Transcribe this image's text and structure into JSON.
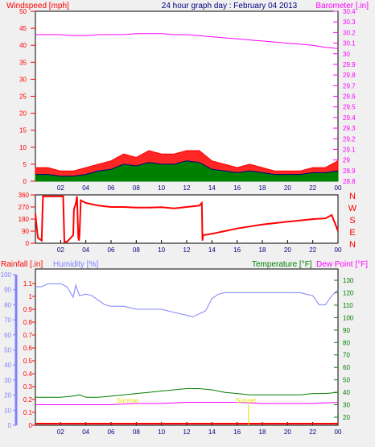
{
  "title": "24 hour graph day : February 04 2013",
  "colors": {
    "windspeed": "#ff0000",
    "gust_fill": "#ff0000",
    "wind_avg": "#008000",
    "wind_mean_line": "#000080",
    "barometer": "#ff00ff",
    "direction": "#ff0000",
    "rainfall": "#ff0000",
    "humidity": "#8080ff",
    "temperature": "#008000",
    "dewpoint": "#ff00ff",
    "title": "#000080",
    "background": "#f0f0f0",
    "plot_bg": "#ffffff"
  },
  "x_tick_labels": [
    "02",
    "04",
    "06",
    "08",
    "10",
    "12",
    "14",
    "16",
    "18",
    "20",
    "22",
    "00"
  ],
  "panel1": {
    "left_label": "Windspeed [mph]",
    "right_label": "Barometer [.in]",
    "left_ticks": [
      "0",
      "5",
      "10",
      "15",
      "20",
      "25",
      "30",
      "35",
      "40",
      "45",
      "50"
    ],
    "right_ticks": [
      "28.8",
      "28.9",
      "29",
      "29.1",
      "29.2",
      "29.3",
      "29.4",
      "29.5",
      "29.6",
      "29.7",
      "29.8",
      "29.9",
      "30",
      "30.1",
      "30.2",
      "30.3",
      "30.4"
    ]
  },
  "panel2": {
    "left_ticks": [
      "0",
      "90",
      "180",
      "270",
      "360"
    ],
    "compass": [
      "N",
      "W",
      "S",
      "E",
      "N"
    ]
  },
  "panel3": {
    "rain_label": "Rainfall [.in]",
    "humidity_label": "Humidity [%]",
    "temp_label": "Temperature [°F]",
    "dew_label": "Dew Point [°F]",
    "rain_ticks": [
      "0",
      "0.1",
      "0.2",
      "0.3",
      "0.4",
      "0.5",
      "0.6",
      "0.7",
      "0.8",
      "0.9",
      "1",
      "1.1"
    ],
    "humidity_ticks": [
      "0",
      "10",
      "20",
      "30",
      "40",
      "50",
      "60",
      "70",
      "80",
      "90",
      "100"
    ],
    "temp_ticks": [
      "20",
      "30",
      "40",
      "50",
      "60",
      "70",
      "80",
      "90",
      "100",
      "110",
      "120",
      "130"
    ],
    "annotations": [
      "Sunrise",
      "Sunset"
    ]
  },
  "chart_data": [
    {
      "type": "line",
      "title": "24 hour graph day : February 04 2013",
      "xlabel": "",
      "x_range_hours": [
        0,
        24
      ],
      "ylabel_left": "Windspeed [mph]",
      "ylim_left": [
        0,
        50
      ],
      "ylabel_right": "Barometer [.in]",
      "ylim_right": [
        28.8,
        30.4
      ],
      "series": [
        {
          "name": "Windspeed [mph]",
          "axis": "left",
          "style": "gust",
          "x": [
            0,
            1,
            2,
            3,
            4,
            5,
            6,
            7,
            8,
            9,
            10,
            11,
            12,
            13,
            14,
            15,
            16,
            17,
            18,
            19,
            20,
            21,
            22,
            23,
            24
          ],
          "y": [
            4,
            4,
            3,
            3,
            4,
            5,
            6,
            8,
            7,
            9,
            8,
            8,
            9,
            9,
            6,
            5,
            4,
            5,
            4,
            3,
            3,
            3,
            4,
            4,
            6
          ]
        },
        {
          "name": "Windspeed [mph]",
          "axis": "left",
          "style": "average",
          "x": [
            0,
            1,
            2,
            3,
            4,
            5,
            6,
            7,
            8,
            9,
            10,
            11,
            12,
            13,
            14,
            15,
            16,
            17,
            18,
            19,
            20,
            21,
            22,
            23,
            24
          ],
          "y": [
            2,
            2,
            1.5,
            1.5,
            2,
            3,
            3.5,
            5,
            4.5,
            5.5,
            5,
            5,
            6,
            5.5,
            3.5,
            3,
            2.5,
            3,
            2.5,
            2,
            2,
            2,
            2.5,
            2.5,
            3
          ]
        },
        {
          "name": "Barometer [.in]",
          "axis": "right",
          "x": [
            0,
            1,
            2,
            3,
            4,
            5,
            6,
            7,
            8,
            9,
            10,
            11,
            12,
            13,
            14,
            15,
            16,
            17,
            18,
            19,
            20,
            21,
            22,
            23,
            24
          ],
          "y": [
            30.18,
            30.18,
            30.18,
            30.17,
            30.17,
            30.18,
            30.18,
            30.18,
            30.19,
            30.19,
            30.19,
            30.18,
            30.18,
            30.17,
            30.16,
            30.15,
            30.14,
            30.13,
            30.12,
            30.11,
            30.1,
            30.09,
            30.08,
            30.06,
            30.05
          ]
        }
      ]
    },
    {
      "type": "line",
      "xlabel": "",
      "x_range_hours": [
        0,
        24
      ],
      "ylim": [
        0,
        360
      ],
      "series": [
        {
          "name": "Wind direction",
          "x": [
            0,
            0.1,
            0.2,
            0.5,
            0.6,
            1.1,
            1.2,
            2.2,
            2.3,
            2.5,
            3.0,
            3.05,
            3.1,
            3.2,
            3.3,
            3.4,
            3.45,
            3.5,
            3.6,
            4,
            5,
            6,
            7,
            8,
            9,
            10,
            11,
            12,
            13,
            13.2,
            13.25,
            13.3,
            14,
            15,
            16,
            17,
            18,
            19,
            20,
            21,
            22,
            23,
            23.5,
            23.8,
            24
          ],
          "y": [
            220,
            120,
            40,
            20,
            350,
            350,
            350,
            350,
            10,
            10,
            60,
            240,
            270,
            290,
            350,
            40,
            20,
            60,
            320,
            300,
            280,
            270,
            270,
            265,
            265,
            268,
            260,
            270,
            280,
            300,
            20,
            60,
            70,
            90,
            110,
            125,
            140,
            150,
            160,
            170,
            180,
            185,
            210,
            140,
            90
          ]
        }
      ]
    },
    {
      "type": "line",
      "xlabel": "",
      "x_range_hours": [
        0,
        24
      ],
      "ylim_rain": [
        0,
        1.1
      ],
      "ylim_humidity": [
        0,
        100
      ],
      "ylim_temp": [
        20,
        130
      ],
      "series": [
        {
          "name": "Rainfall [.in]",
          "axis": "rain",
          "x": [
            0,
            24
          ],
          "y": [
            0,
            0
          ]
        },
        {
          "name": "Humidity [%]",
          "axis": "humidity",
          "x": [
            0,
            0.5,
            1,
            2,
            2.5,
            3,
            3.2,
            3.5,
            4,
            4.5,
            5,
            5.5,
            6,
            7,
            8,
            9,
            10,
            11,
            12,
            12.5,
            13,
            13.5,
            14,
            14.5,
            15,
            16,
            17,
            18,
            19,
            20,
            21,
            22,
            22.5,
            23,
            23.5,
            24
          ],
          "y": [
            92,
            92,
            94,
            94,
            92,
            85,
            93,
            86,
            87,
            86,
            83,
            80,
            79,
            79,
            77,
            77,
            77,
            75,
            73,
            72,
            74,
            76,
            84,
            87,
            88,
            88,
            88,
            88,
            88,
            88,
            88,
            86,
            80,
            80,
            86,
            90
          ]
        },
        {
          "name": "Temperature [°F]",
          "axis": "temp",
          "x": [
            0,
            1,
            2,
            3,
            3.5,
            4,
            5,
            6,
            7,
            8,
            9,
            10,
            11,
            12,
            13,
            14,
            15,
            16,
            17,
            18,
            19,
            20,
            21,
            22,
            23,
            24
          ],
          "y": [
            36,
            36,
            36,
            37,
            38,
            36,
            36,
            37,
            38,
            39,
            40,
            41,
            42,
            43,
            43,
            42,
            40,
            39,
            38,
            38,
            38,
            38,
            38,
            39,
            39,
            40
          ]
        },
        {
          "name": "Dew Point [°F]",
          "axis": "temp",
          "x": [
            0,
            2,
            4,
            6,
            8,
            10,
            12,
            13,
            14,
            16,
            18,
            20,
            22,
            24
          ],
          "y": [
            30,
            30,
            30,
            30,
            31,
            31,
            32,
            32,
            32,
            32,
            31,
            31,
            31,
            32
          ]
        }
      ]
    }
  ]
}
